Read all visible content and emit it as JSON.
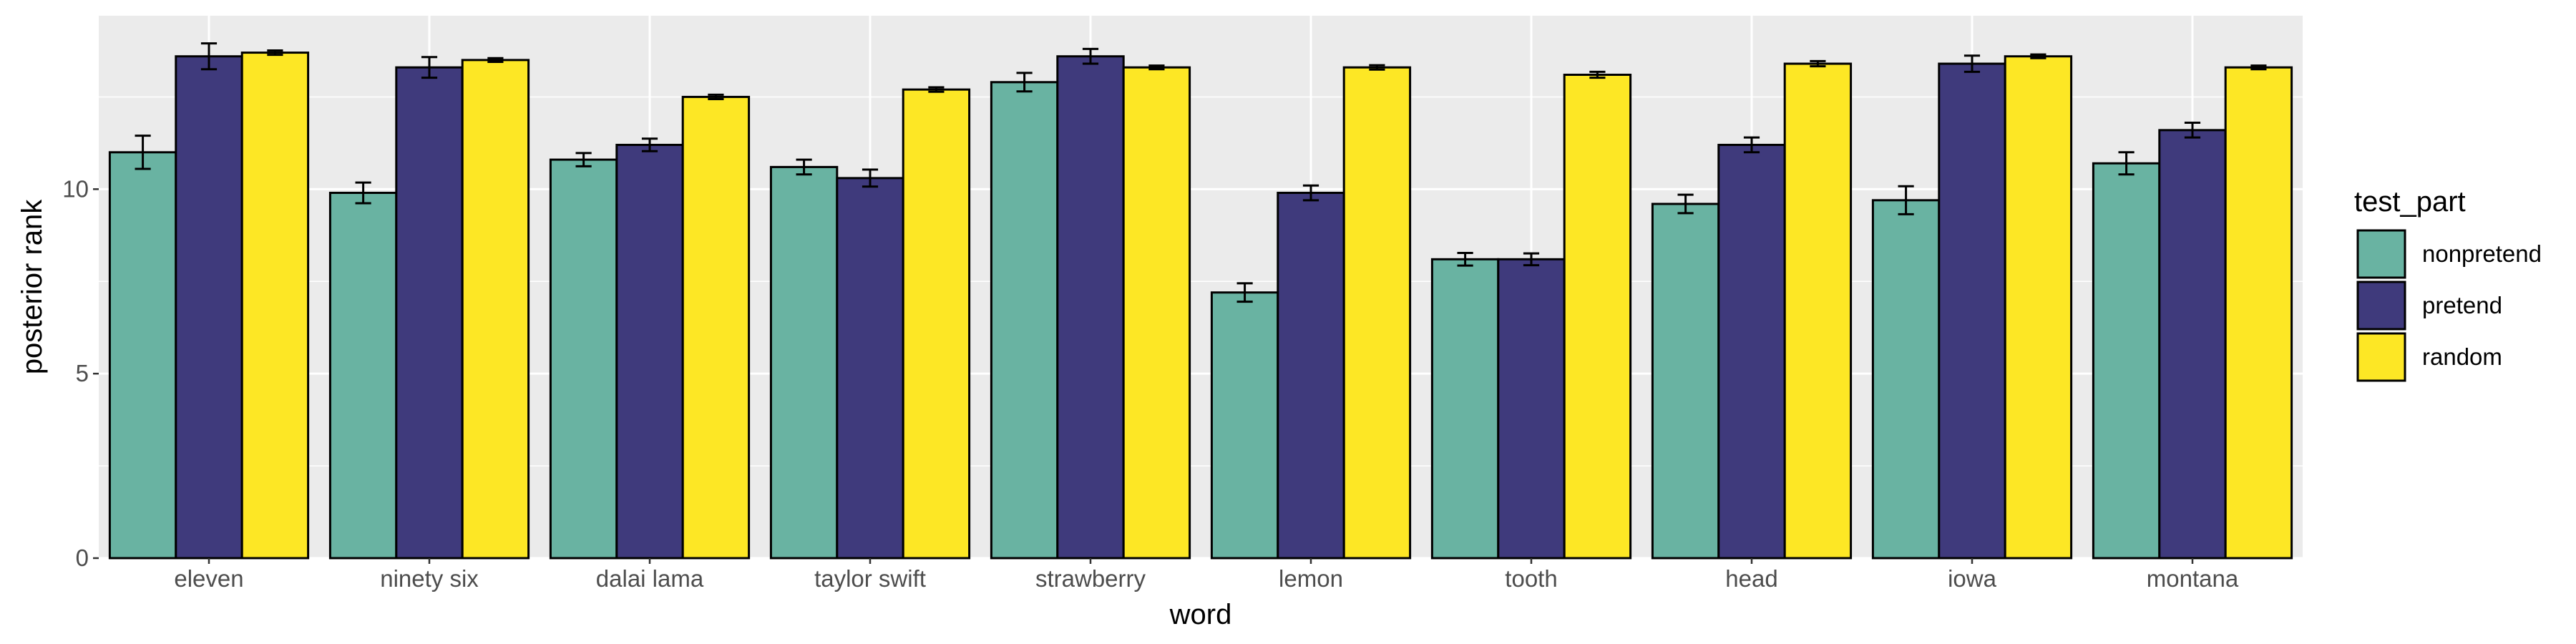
{
  "chart_data": {
    "type": "bar",
    "xlabel": "word",
    "ylabel": "posterior rank",
    "ylim": [
      0,
      14.7
    ],
    "yticks": [
      0,
      5,
      10
    ],
    "grid": true,
    "legend_title": "test_part",
    "legend_position": "right",
    "categories": [
      "eleven",
      "ninety six",
      "dalai lama",
      "taylor swift",
      "strawberry",
      "lemon",
      "tooth",
      "head",
      "iowa",
      "montana"
    ],
    "series": [
      {
        "name": "nonpretend",
        "color": "#69b3a2",
        "values": [
          11.0,
          9.9,
          10.8,
          10.6,
          12.9,
          7.2,
          8.1,
          9.6,
          9.7,
          10.7
        ],
        "errors": [
          0.45,
          0.28,
          0.18,
          0.2,
          0.25,
          0.25,
          0.17,
          0.25,
          0.38,
          0.3
        ]
      },
      {
        "name": "pretend",
        "color": "#3f3a7c",
        "values": [
          13.6,
          13.3,
          11.2,
          10.3,
          13.6,
          9.9,
          8.1,
          11.2,
          13.4,
          11.6
        ],
        "errors": [
          0.35,
          0.28,
          0.17,
          0.23,
          0.2,
          0.2,
          0.16,
          0.2,
          0.22,
          0.2
        ]
      },
      {
        "name": "random",
        "color": "#fde725",
        "values": [
          13.7,
          13.5,
          12.5,
          12.7,
          13.3,
          13.3,
          13.1,
          13.4,
          13.6,
          13.3
        ],
        "errors": [
          0.06,
          0.05,
          0.06,
          0.06,
          0.05,
          0.06,
          0.08,
          0.07,
          0.05,
          0.05
        ]
      }
    ]
  }
}
